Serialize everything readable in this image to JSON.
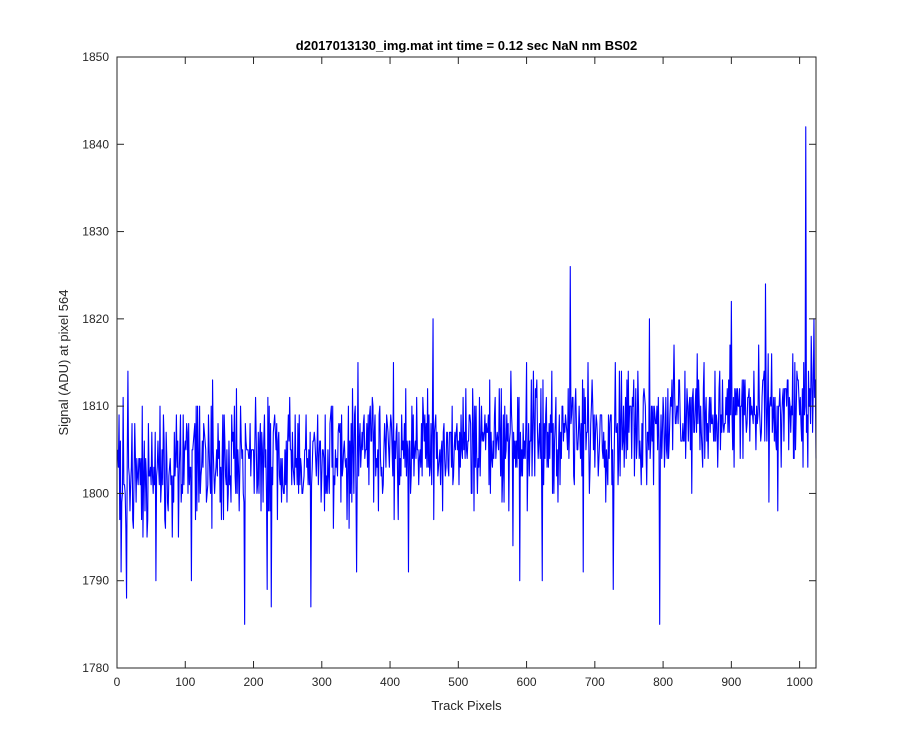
{
  "figure": {
    "background": "#ffffff"
  },
  "chart_data": {
    "type": "line",
    "title": "d2017013130_img.mat int time = 0.12 sec  NaN nm BS02",
    "xlabel": "Track Pixels",
    "ylabel": "Signal (ADU) at pixel 564",
    "xlim": [
      0,
      1024
    ],
    "ylim": [
      1780,
      1850
    ],
    "xticks": [
      0,
      100,
      200,
      300,
      400,
      500,
      600,
      700,
      800,
      900,
      1000
    ],
    "yticks": [
      1780,
      1790,
      1800,
      1810,
      1820,
      1830,
      1840,
      1850
    ],
    "grid": false,
    "box": true,
    "line_color": "#0000ff",
    "series": [
      {
        "x_start": 1,
        "x_step": 1,
        "trend": {
          "start": 1802,
          "end": 1810
        },
        "noise_amplitude": 4.2,
        "notable_points": [
          {
            "x": 4,
            "y": 1797
          },
          {
            "x": 6,
            "y": 1791
          },
          {
            "x": 9,
            "y": 1811
          },
          {
            "x": 14,
            "y": 1788
          },
          {
            "x": 16,
            "y": 1814
          },
          {
            "x": 57,
            "y": 1790
          },
          {
            "x": 109,
            "y": 1790
          },
          {
            "x": 140,
            "y": 1813
          },
          {
            "x": 187,
            "y": 1785
          },
          {
            "x": 220,
            "y": 1789
          },
          {
            "x": 226,
            "y": 1787
          },
          {
            "x": 284,
            "y": 1787
          },
          {
            "x": 351,
            "y": 1791
          },
          {
            "x": 405,
            "y": 1815
          },
          {
            "x": 427,
            "y": 1791
          },
          {
            "x": 463,
            "y": 1820
          },
          {
            "x": 580,
            "y": 1794
          },
          {
            "x": 590,
            "y": 1790
          },
          {
            "x": 600,
            "y": 1815
          },
          {
            "x": 623,
            "y": 1790
          },
          {
            "x": 664,
            "y": 1826
          },
          {
            "x": 683,
            "y": 1791
          },
          {
            "x": 727,
            "y": 1789
          },
          {
            "x": 780,
            "y": 1820
          },
          {
            "x": 795,
            "y": 1785
          },
          {
            "x": 900,
            "y": 1822
          },
          {
            "x": 950,
            "y": 1824
          },
          {
            "x": 968,
            "y": 1798
          },
          {
            "x": 1005,
            "y": 1803
          },
          {
            "x": 1009,
            "y": 1842
          },
          {
            "x": 1012,
            "y": 1803
          },
          {
            "x": 1021,
            "y": 1820
          },
          {
            "x": 1024,
            "y": 1804
          }
        ]
      }
    ]
  }
}
